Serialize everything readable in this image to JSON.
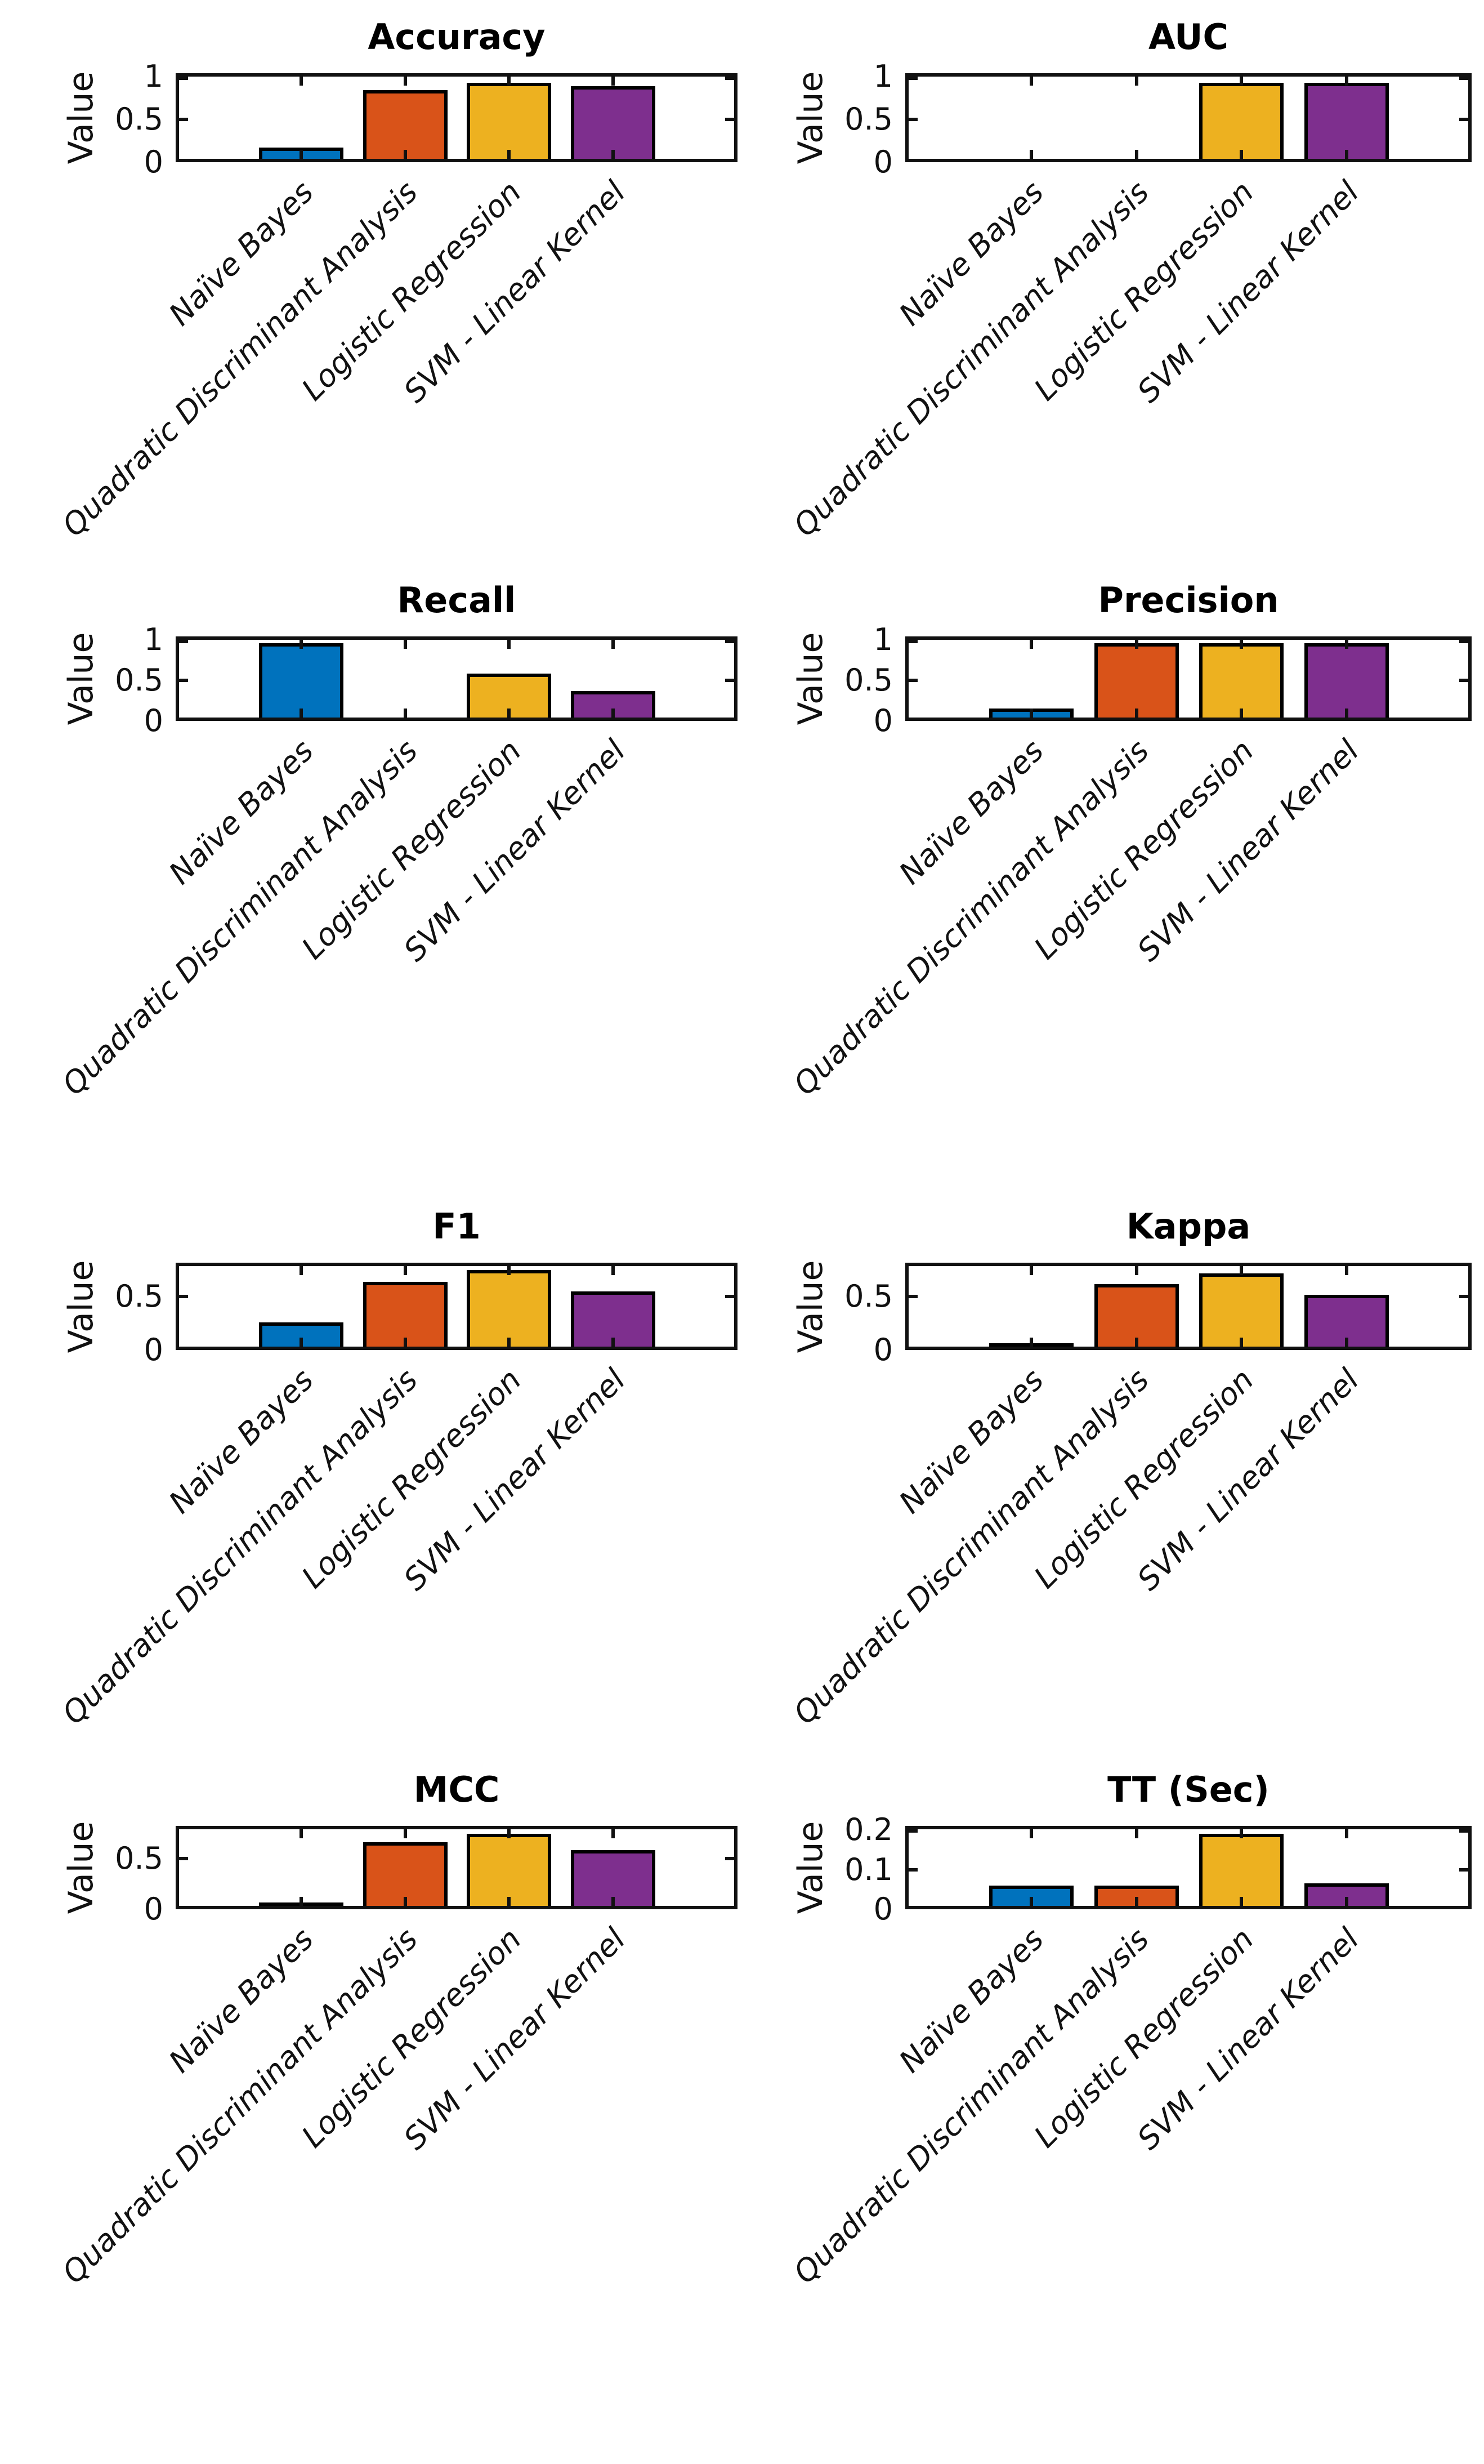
{
  "figure": {
    "background": "#ffffff",
    "axis_color": "#111111",
    "text_color": "#111111",
    "title_color": "#000000",
    "bar_edge_color": "#000000",
    "bar_colors": [
      "#0072BD",
      "#D95319",
      "#EDB120",
      "#7E2F8E"
    ],
    "ylabel": "Value",
    "categories": [
      "Naïve Bayes",
      "Quadratic Discriminant Analysis",
      "Logistic Regression",
      "SVM - Linear Kernel"
    ]
  },
  "chart_data": [
    {
      "type": "bar",
      "title": "Accuracy",
      "xlabel": "",
      "ylabel": "Value",
      "categories": [
        "Naïve Bayes",
        "Quadratic Discriminant Analysis",
        "Logistic Regression",
        "SVM - Linear Kernel"
      ],
      "values": [
        0.17,
        0.84,
        0.93,
        0.89
      ],
      "yticks": [
        0,
        0.5,
        1
      ],
      "ytick_labels": [
        "0",
        "0.5",
        "1"
      ],
      "ylim": [
        0,
        1.04
      ],
      "grid": false,
      "legend_position": "none"
    },
    {
      "type": "bar",
      "title": "AUC",
      "xlabel": "",
      "ylabel": "Value",
      "categories": [
        "Naïve Bayes",
        "Quadratic Discriminant Analysis",
        "Logistic Regression",
        "SVM - Linear Kernel"
      ],
      "values": [
        0,
        0,
        0.93,
        0.93
      ],
      "yticks": [
        0,
        0.5,
        1
      ],
      "ytick_labels": [
        "0",
        "0.5",
        "1"
      ],
      "ylim": [
        0,
        1.04
      ],
      "grid": false,
      "legend_position": "none"
    },
    {
      "type": "bar",
      "title": "Recall",
      "xlabel": "",
      "ylabel": "Value",
      "categories": [
        "Naïve Bayes",
        "Quadratic Discriminant Analysis",
        "Logistic Regression",
        "SVM - Linear Kernel"
      ],
      "values": [
        0.96,
        0,
        0.58,
        0.37
      ],
      "yticks": [
        0,
        0.5,
        1
      ],
      "ytick_labels": [
        "0",
        "0.5",
        "1"
      ],
      "ylim": [
        0,
        1.04
      ],
      "grid": false,
      "legend_position": "none"
    },
    {
      "type": "bar",
      "title": "Precision",
      "xlabel": "",
      "ylabel": "Value",
      "categories": [
        "Naïve Bayes",
        "Quadratic Discriminant Analysis",
        "Logistic Regression",
        "SVM - Linear Kernel"
      ],
      "values": [
        0.15,
        0.96,
        0.96,
        0.96
      ],
      "yticks": [
        0,
        0.5,
        1
      ],
      "ytick_labels": [
        "0",
        "0.5",
        "1"
      ],
      "ylim": [
        0,
        1.04
      ],
      "grid": false,
      "legend_position": "none"
    },
    {
      "type": "bar",
      "title": "F1",
      "xlabel": "",
      "ylabel": "Value",
      "categories": [
        "Naïve Bayes",
        "Quadratic Discriminant Analysis",
        "Logistic Regression",
        "SVM - Linear Kernel"
      ],
      "values": [
        0.26,
        0.64,
        0.75,
        0.55
      ],
      "yticks": [
        0,
        0.5
      ],
      "ytick_labels": [
        "0",
        "0.5"
      ],
      "ylim": [
        0,
        0.82
      ],
      "grid": false,
      "legend_position": "none"
    },
    {
      "type": "bar",
      "title": "Kappa",
      "xlabel": "",
      "ylabel": "Value",
      "categories": [
        "Naïve Bayes",
        "Quadratic Discriminant Analysis",
        "Logistic Regression",
        "SVM - Linear Kernel"
      ],
      "values": [
        0.01,
        0.62,
        0.72,
        0.52
      ],
      "yticks": [
        0,
        0.5
      ],
      "ytick_labels": [
        "0",
        "0.5"
      ],
      "ylim": [
        0,
        0.82
      ],
      "grid": false,
      "legend_position": "none"
    },
    {
      "type": "bar",
      "title": "MCC",
      "xlabel": "",
      "ylabel": "Value",
      "categories": [
        "Naïve Bayes",
        "Quadratic Discriminant Analysis",
        "Logistic Regression",
        "SVM - Linear Kernel"
      ],
      "values": [
        0.03,
        0.66,
        0.74,
        0.58
      ],
      "yticks": [
        0,
        0.5
      ],
      "ytick_labels": [
        "0",
        "0.5"
      ],
      "ylim": [
        0,
        0.82
      ],
      "grid": false,
      "legend_position": "none"
    },
    {
      "type": "bar",
      "title": "TT (Sec)",
      "xlabel": "",
      "ylabel": "Value",
      "categories": [
        "Naïve Bayes",
        "Quadratic Discriminant Analysis",
        "Logistic Regression",
        "SVM - Linear Kernel"
      ],
      "values": [
        0.06,
        0.06,
        0.19,
        0.065
      ],
      "yticks": [
        0,
        0.1,
        0.2
      ],
      "ytick_labels": [
        "0",
        "0.1",
        "0.2"
      ],
      "ylim": [
        0,
        0.21
      ],
      "grid": false,
      "legend_position": "none"
    }
  ]
}
